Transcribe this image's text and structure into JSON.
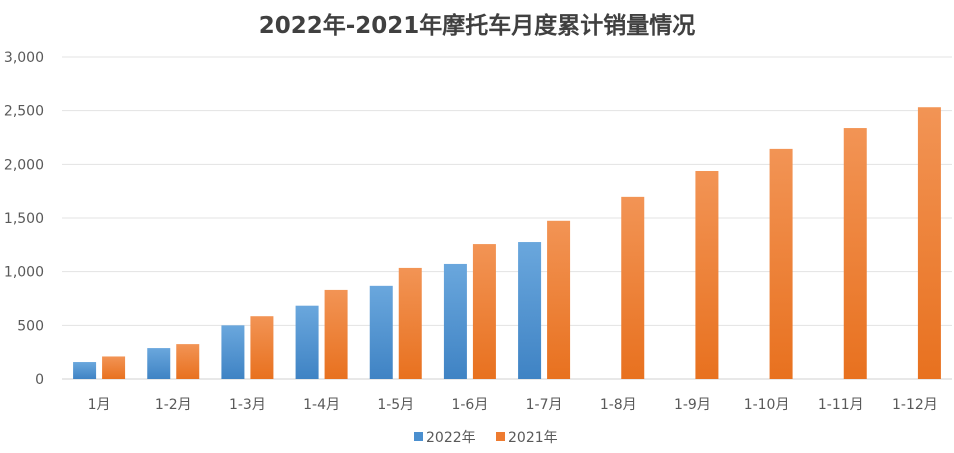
{
  "chart_data": {
    "type": "bar",
    "title": "2022年-2021年摩托车月度累计销量情况",
    "xlabel": "",
    "ylabel": "",
    "ylim": [
      0,
      3000
    ],
    "yticks": [
      "0",
      "500",
      "1,000",
      "1,500",
      "2,000",
      "2,500",
      "3,000"
    ],
    "grid": true,
    "legend_position": "bottom",
    "categories": [
      "1月",
      "1-2月",
      "1-3月",
      "1-4月",
      "1-5月",
      "1-6月",
      "1-7月",
      "1-8月",
      "1-9月",
      "1-10月",
      "1-11月",
      "1-12月"
    ],
    "series": [
      {
        "name": "2022年",
        "color": "#4a8fcf",
        "values": [
          158,
          288,
          500,
          683,
          868,
          1072,
          1276,
          null,
          null,
          null,
          null,
          null
        ]
      },
      {
        "name": "2021年",
        "color": "#ee7b30",
        "values": [
          210,
          325,
          585,
          830,
          1035,
          1257,
          1474,
          1697,
          1938,
          2144,
          2338,
          2532
        ]
      }
    ]
  }
}
